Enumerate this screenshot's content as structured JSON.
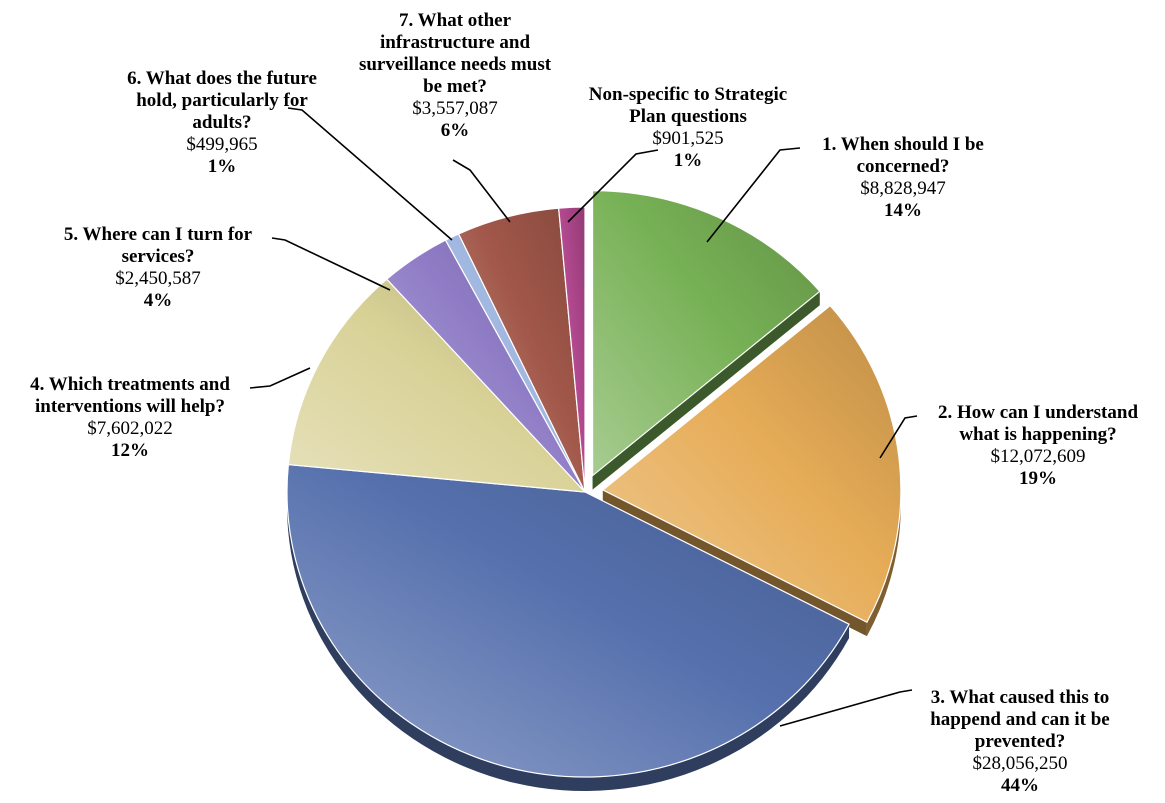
{
  "chart_data": {
    "type": "pie",
    "title": "",
    "slices": [
      {
        "key": "q1",
        "label_lines": [
          "1. When should I be",
          "concerned?"
        ],
        "amount": "$8,828,947",
        "value": 8828947,
        "pct": "14%",
        "color": "#77b155"
      },
      {
        "key": "q2",
        "label_lines": [
          "2. How can I understand",
          "what is happening?"
        ],
        "amount": "$12,072,609",
        "value": 12072609,
        "pct": "19%",
        "color": "#e6ac57"
      },
      {
        "key": "q3",
        "label_lines": [
          "3. What caused this to",
          "happend and can it be",
          "prevented?"
        ],
        "amount": "$28,056,250",
        "value": 28056250,
        "pct": "44%",
        "color": "#5570ad"
      },
      {
        "key": "q4",
        "label_lines": [
          "4. Which treatments and",
          "interventions will help?"
        ],
        "amount": "$7,602,022",
        "value": 7602022,
        "pct": "12%",
        "color": "#d8d196"
      },
      {
        "key": "q5",
        "label_lines": [
          "5. Where can I turn for",
          "services?"
        ],
        "amount": "$2,450,587",
        "value": 2450587,
        "pct": "4%",
        "color": "#8f7cc6"
      },
      {
        "key": "q6",
        "label_lines": [
          "6. What does the future",
          "hold, particularly for",
          "adults?"
        ],
        "amount": "$499,965",
        "value": 499965,
        "pct": "1%",
        "color": "#9fb6e0"
      },
      {
        "key": "q7",
        "label_lines": [
          "7. What other",
          "infrastructure and",
          "surveillance needs must",
          "be met?"
        ],
        "amount": "$3,557,087",
        "value": 3557087,
        "pct": "6%",
        "color": "#a2584a"
      },
      {
        "key": "ns",
        "label_lines": [
          "Non-specific to Strategic",
          "Plan questions"
        ],
        "amount": "$901,525",
        "value": 901525,
        "pct": "1%",
        "color": "#b2488f"
      }
    ]
  }
}
